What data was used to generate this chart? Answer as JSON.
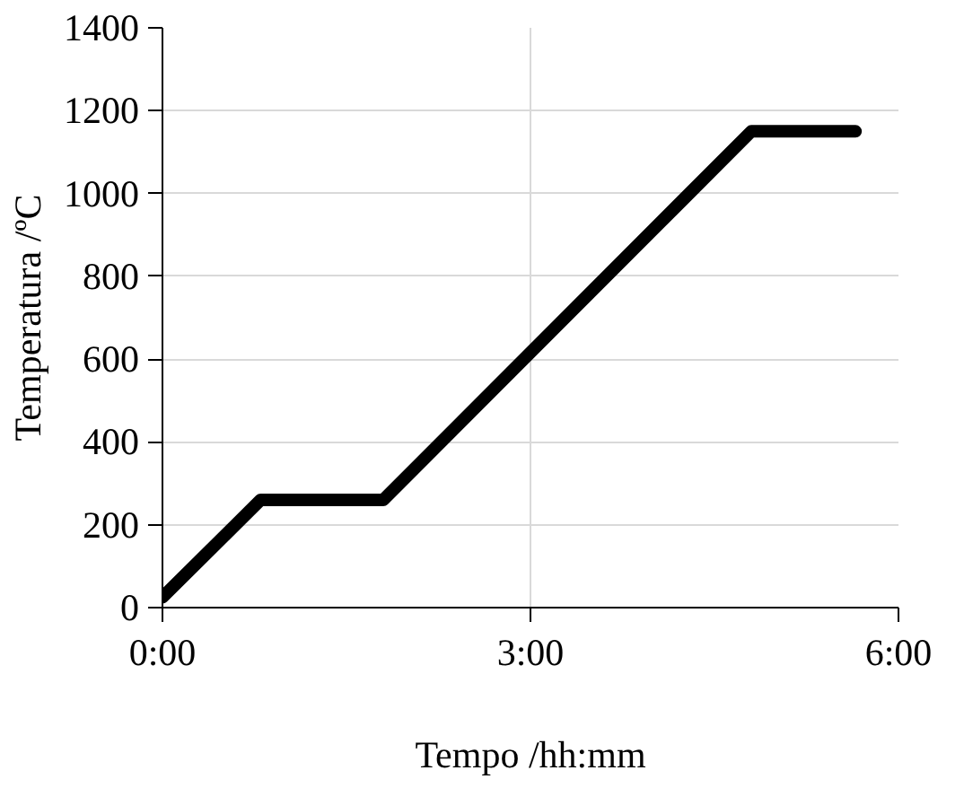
{
  "chart_data": {
    "type": "line",
    "xlabel": "Tempo /hh:mm",
    "ylabel": "Temperatura /ºC",
    "x": [
      0,
      0.8,
      1.8,
      4.8,
      5.65
    ],
    "series": [
      {
        "color": "#000000",
        "values": [
          25,
          260,
          260,
          1150,
          1150
        ]
      }
    ],
    "xlim": [
      0,
      6
    ],
    "ylim": [
      0,
      1400
    ],
    "xticks": [
      {
        "value": 0,
        "label": "0:00"
      },
      {
        "value": 3,
        "label": "3:00"
      },
      {
        "value": 6,
        "label": "6:00"
      }
    ],
    "yticks": [
      0,
      200,
      400,
      600,
      800,
      1000,
      1200,
      1400
    ],
    "grid": true,
    "marker": "none",
    "line_style": "solid"
  }
}
